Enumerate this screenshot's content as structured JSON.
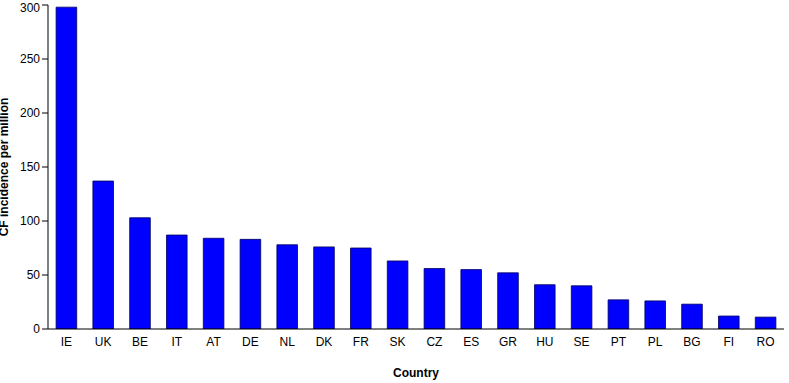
{
  "chart_data": {
    "type": "bar",
    "x_label": "Country",
    "y_label": "CF incidence per million",
    "categories": [
      "IE",
      "UK",
      "BE",
      "IT",
      "AT",
      "DE",
      "NL",
      "DK",
      "FR",
      "SK",
      "CZ",
      "ES",
      "GR",
      "HU",
      "SE",
      "PT",
      "PL",
      "BG",
      "FI",
      "RO"
    ],
    "values": [
      298,
      137,
      103,
      87,
      84,
      83,
      78,
      76,
      75,
      63,
      56,
      55,
      52,
      41,
      40,
      27,
      26,
      23,
      12,
      11
    ],
    "color": "#0000ff",
    "ylim": [
      0,
      300
    ],
    "yticks": [
      0,
      50,
      100,
      150,
      200,
      250,
      300
    ],
    "grid": false
  }
}
